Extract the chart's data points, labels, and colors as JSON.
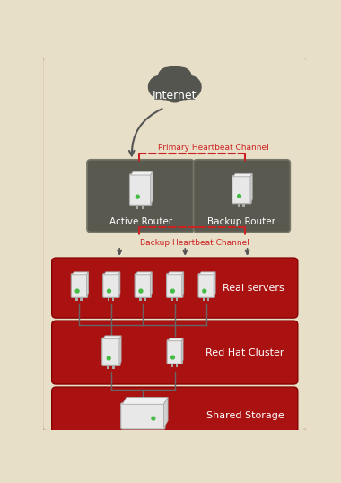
{
  "bg_color": "#e8dfc8",
  "cloud_color": "#555550",
  "cloud_label": "Internet",
  "cloud_label_color": "#ffffff",
  "router_box_color": "#595950",
  "router_box_edge": "#777768",
  "active_router_label": "Active Router",
  "backup_router_label": "Backup Router",
  "primary_hb_label": "Primary Heartbeat Channel",
  "backup_hb_label": "Backup Heartbeat Channel",
  "hb_color": "#cc2222",
  "band_color": "#aa1111",
  "band_edge": "#880000",
  "band_label1": "Real servers",
  "band_label2": "Red Hat Cluster",
  "band_label3": "Shared Storage",
  "band_label_color": "#ffffff",
  "server_fill": "#e8e8e8",
  "server_edge": "#aaaaaa",
  "server_dark": "#cccccc",
  "green_dot": "#44bb44",
  "line_color": "#666666",
  "arrow_color": "#555555",
  "font_family": "DejaVu Sans"
}
